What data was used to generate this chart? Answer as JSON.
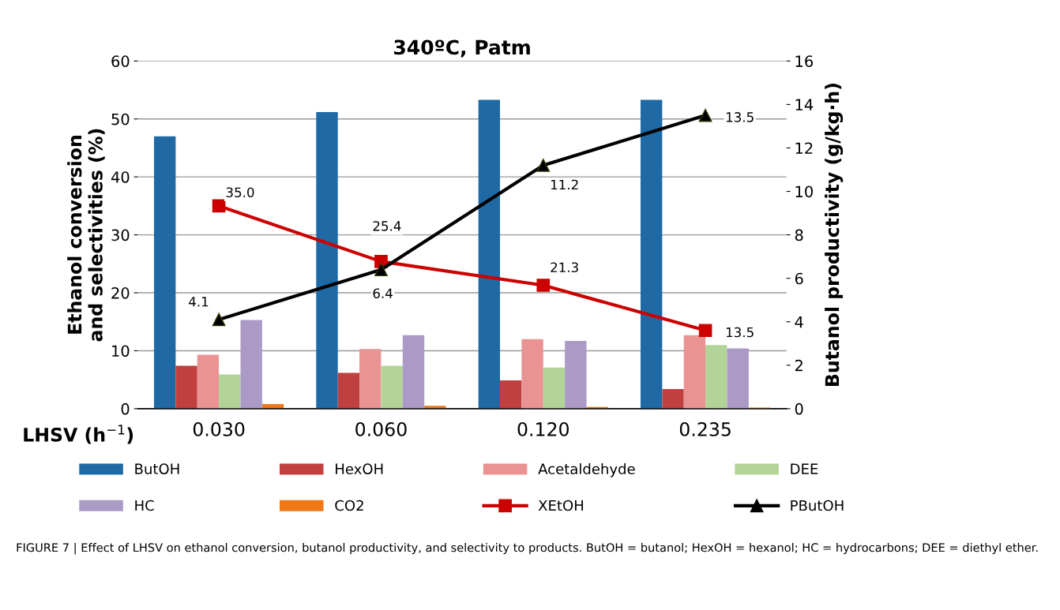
{
  "chart_data": {
    "type": "bar",
    "title": "340ºC, Patm",
    "xlabel": "LHSV (h$^{−1}$)",
    "ylabel": "Ethanol conversion\nand selectivities (%)",
    "y2label": "Butanol productivity (g/kg·h)",
    "categories": [
      "0.030",
      "0.060",
      "0.120",
      "0.235"
    ],
    "series": [
      {
        "name": "ButOH",
        "color": "#1f6aa5",
        "values": [
          47.0,
          51.2,
          53.3,
          53.3
        ]
      },
      {
        "name": "HexOH",
        "color": "#c0403f",
        "values": [
          7.4,
          6.2,
          4.9,
          3.4
        ]
      },
      {
        "name": "Acetaldehyde",
        "color": "#e99393",
        "values": [
          9.3,
          10.3,
          12.0,
          12.7
        ]
      },
      {
        "name": "DEE",
        "color": "#b3d498",
        "values": [
          5.9,
          7.4,
          7.1,
          11.0
        ]
      },
      {
        "name": "HC",
        "color": "#ab9ac6",
        "values": [
          15.3,
          12.7,
          11.7,
          10.4
        ]
      },
      {
        "name": "CO2",
        "color": "#f07818",
        "values": [
          0.8,
          0.5,
          0.3,
          0.2
        ]
      },
      {
        "name": "XEtOH",
        "type": "line",
        "color": "#cc0000",
        "marker": "square",
        "values": [
          35.0,
          25.4,
          21.3,
          13.5
        ],
        "value_labels": [
          "35.0",
          "25.4",
          "21.3",
          "13.5"
        ]
      },
      {
        "name": "PButOH",
        "type": "line",
        "axis": "y2",
        "color": "#000000",
        "marker": "triangle",
        "values": [
          4.1,
          6.4,
          11.2,
          13.5
        ],
        "value_labels": [
          "4.1",
          "6.4",
          "11.2",
          "13.5"
        ]
      }
    ],
    "ylim": [
      0,
      60
    ],
    "yticks": [
      0,
      10,
      20,
      30,
      40,
      50,
      60
    ],
    "y2lim": [
      0,
      16
    ],
    "y2ticks": [
      0,
      2,
      4,
      6,
      8,
      10,
      12,
      14,
      16
    ],
    "grid": "y",
    "legend": "bottom",
    "annotations": [
      "FIGURE 7 | Effect of LHSV on ethanol conversion, butanol productivity, and selectivity to products. ButOH = butanol; HexOH = hexanol; HC = hydrocarbons; DEE = diethyl ether."
    ]
  }
}
